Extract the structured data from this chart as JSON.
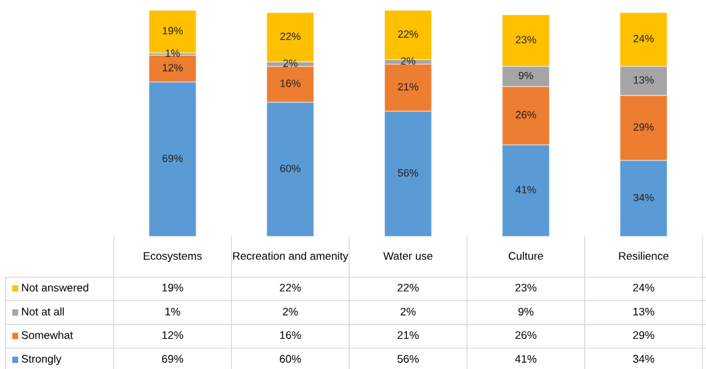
{
  "chart_data": {
    "type": "bar",
    "stacked": true,
    "legend": "left",
    "categories": [
      "Ecosystems",
      "Recreation and amenity",
      "Water use",
      "Culture",
      "Resilience"
    ],
    "series": [
      {
        "name": "Strongly",
        "color": "#5b9bd5",
        "values": [
          69,
          60,
          56,
          41,
          34
        ],
        "value_labels": [
          "69%",
          "60%",
          "56%",
          "41%",
          "34%"
        ]
      },
      {
        "name": "Somewhat",
        "color": "#ed7d31",
        "values": [
          12,
          16,
          21,
          26,
          29
        ],
        "value_labels": [
          "12%",
          "16%",
          "21%",
          "26%",
          "29%"
        ]
      },
      {
        "name": "Not at all",
        "color": "#a5a5a5",
        "values": [
          1,
          2,
          2,
          9,
          13
        ],
        "value_labels": [
          "1%",
          "2%",
          "2%",
          "9%",
          "13%"
        ]
      },
      {
        "name": "Not answered",
        "color": "#ffc000",
        "values": [
          19,
          22,
          22,
          23,
          24
        ],
        "value_labels": [
          "19%",
          "22%",
          "22%",
          "23%",
          "24%"
        ]
      }
    ]
  }
}
